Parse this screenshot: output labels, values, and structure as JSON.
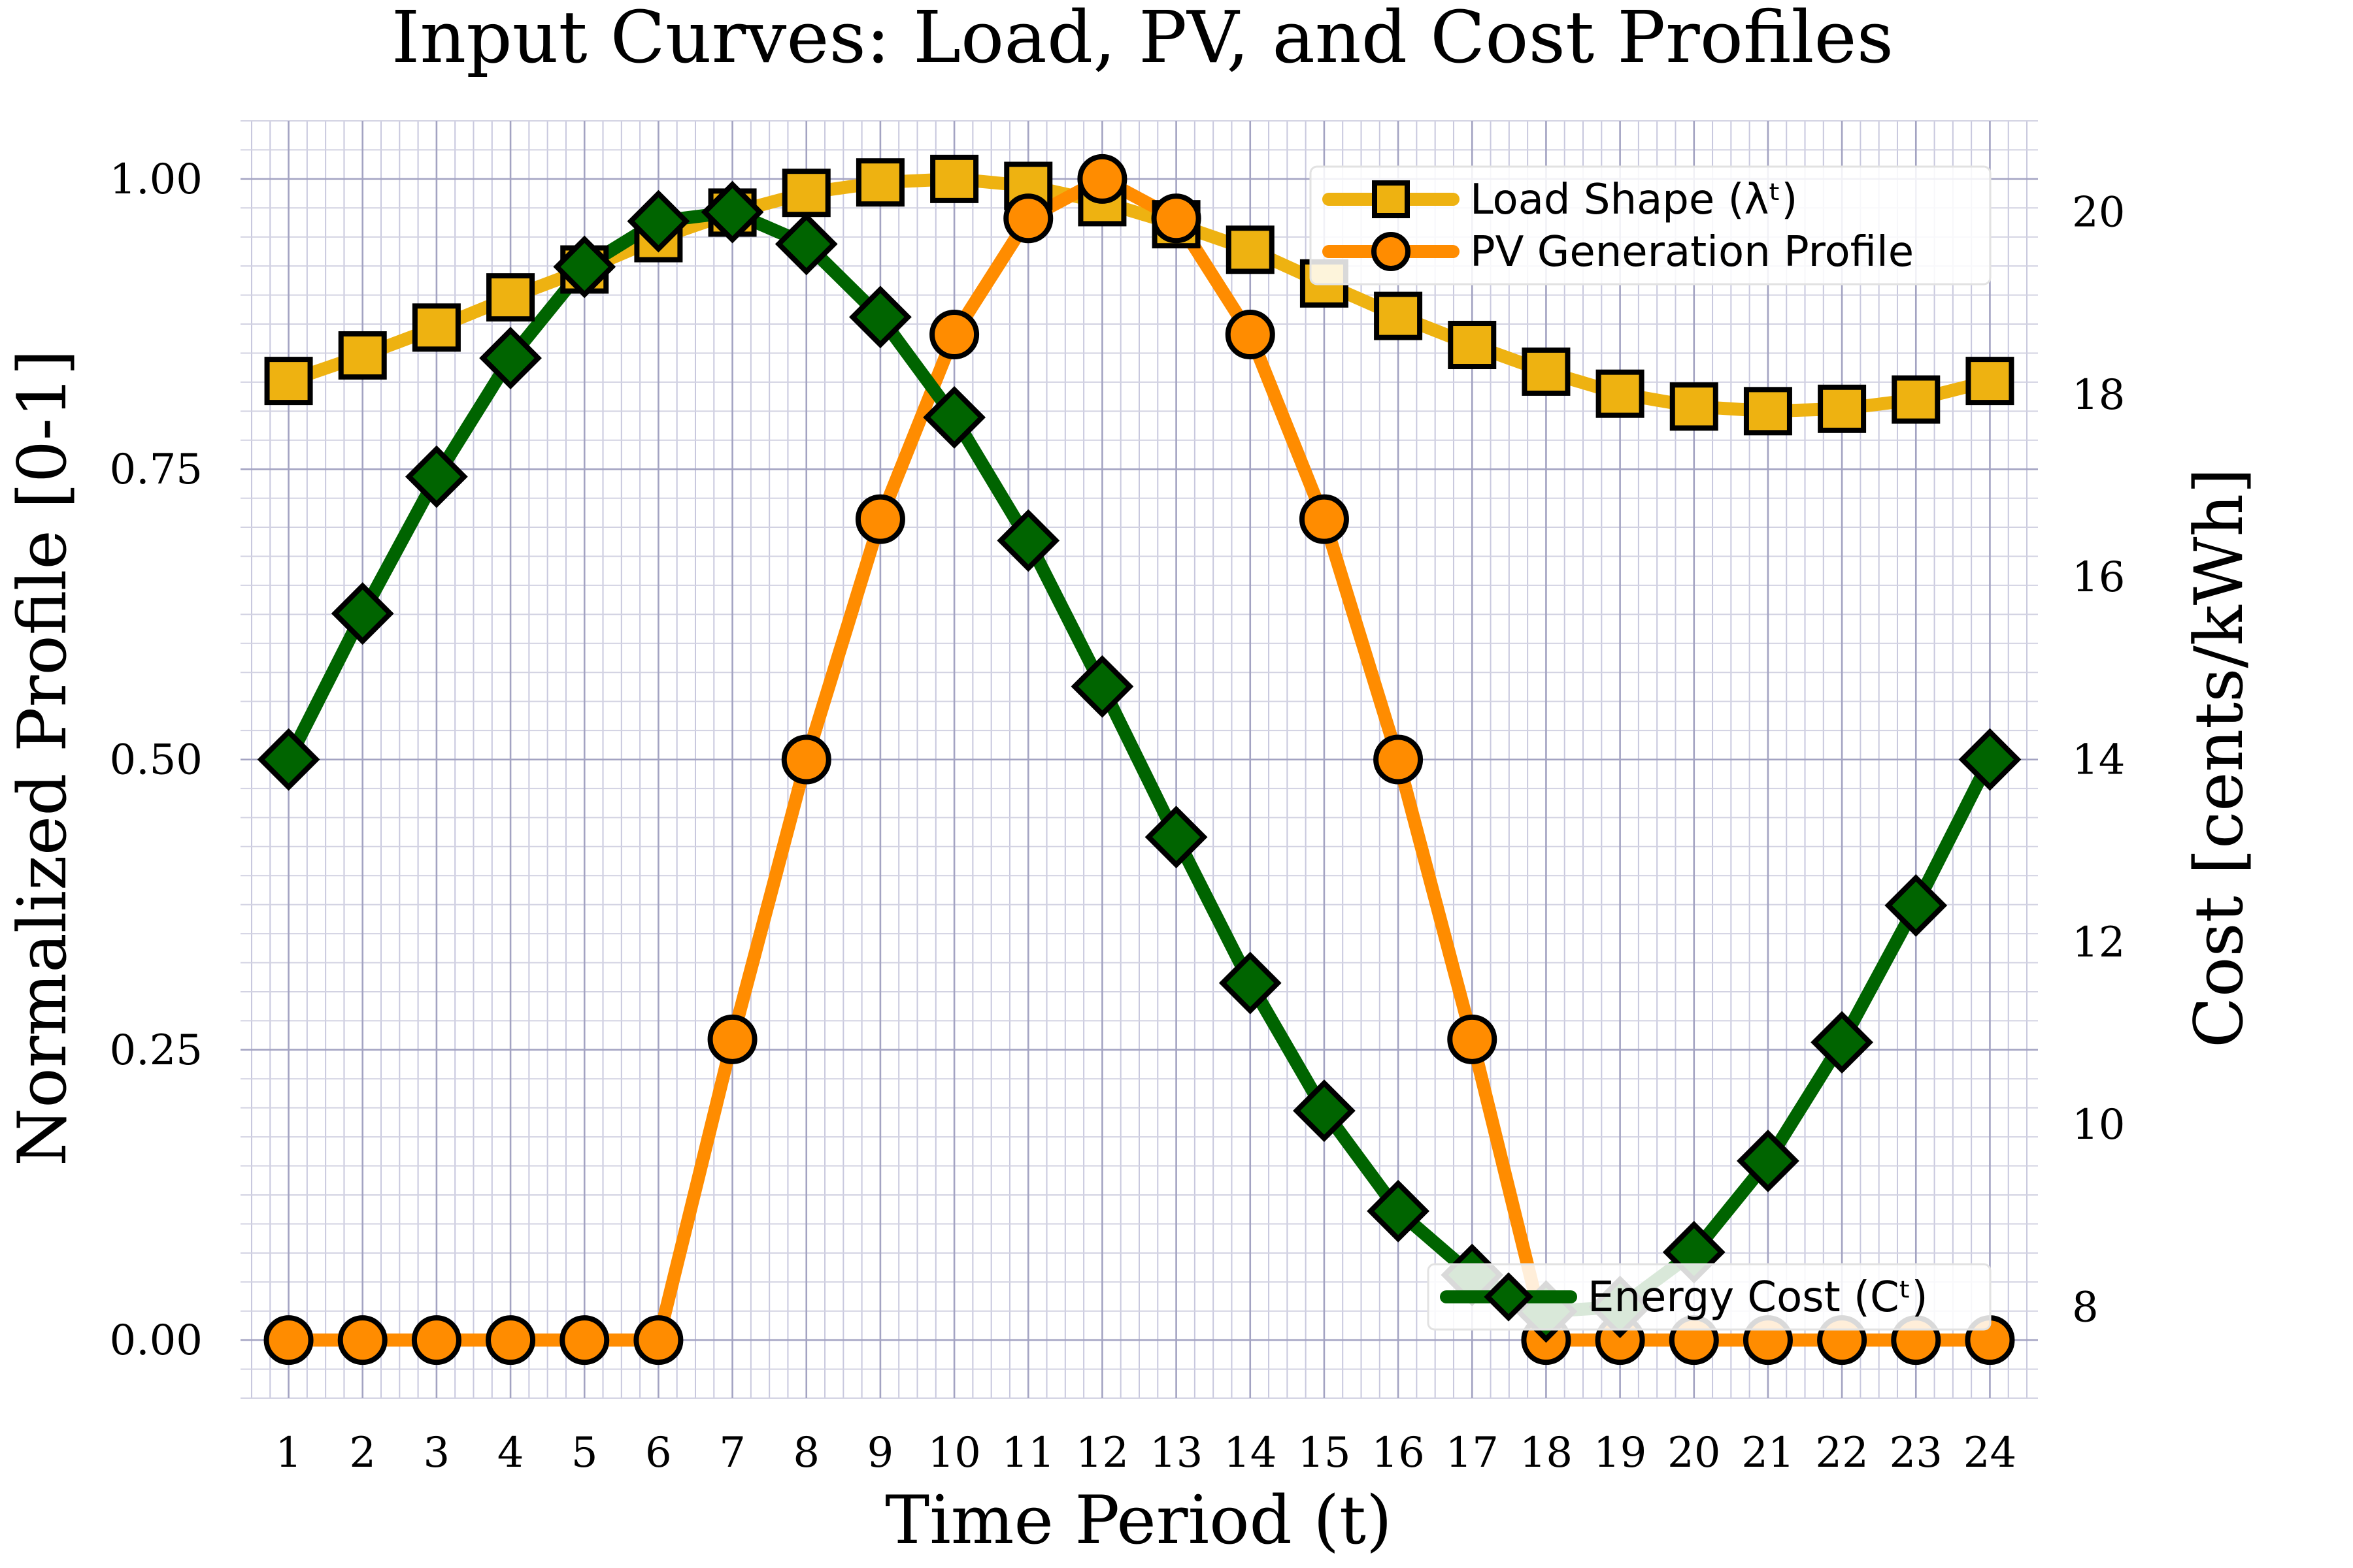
{
  "chart_data": {
    "type": "line",
    "title": "Input Curves: Load, PV, and Cost Profiles",
    "xlabel": "Time Period (t)",
    "ylabel": "Normalized Profile [0-1]",
    "y2label": "Cost [cents/kWh]",
    "categories": [
      "1",
      "2",
      "3",
      "4",
      "5",
      "6",
      "7",
      "8",
      "9",
      "10",
      "11",
      "12",
      "13",
      "14",
      "15",
      "16",
      "17",
      "18",
      "19",
      "20",
      "21",
      "22",
      "23",
      "24"
    ],
    "xlim": [
      0.35,
      24.65
    ],
    "ylim": [
      -0.05,
      1.05
    ],
    "y2lim": [
      7.0,
      21.0
    ],
    "yticks": [
      "0.00",
      "0.25",
      "0.50",
      "0.75",
      "1.00"
    ],
    "y2ticks": [
      "8",
      "10",
      "12",
      "14",
      "16",
      "18",
      "20"
    ],
    "grid": true,
    "series": [
      {
        "name": "Load Shape (λᵗ)",
        "axis": "left",
        "color": "#eeb211",
        "marker": "square",
        "values": [
          0.826,
          0.848,
          0.872,
          0.898,
          0.922,
          0.949,
          0.971,
          0.988,
          0.997,
          1.0,
          0.994,
          0.98,
          0.961,
          0.939,
          0.91,
          0.882,
          0.857,
          0.834,
          0.815,
          0.804,
          0.8,
          0.802,
          0.81,
          0.826
        ]
      },
      {
        "name": "PV Generation Profile",
        "axis": "left",
        "color": "#ff8c00",
        "marker": "circle",
        "values": [
          0,
          0,
          0,
          0,
          0,
          0,
          0.259,
          0.5,
          0.707,
          0.866,
          0.966,
          1.0,
          0.966,
          0.866,
          0.707,
          0.5,
          0.259,
          0,
          0,
          0,
          0,
          0,
          0,
          0
        ]
      },
      {
        "name": "Energy Cost (Cᵗ)",
        "axis": "right",
        "color": "#006400",
        "marker": "diamond",
        "values": [
          14.0,
          15.6,
          17.1,
          18.4,
          19.4,
          19.9,
          20.0,
          19.65,
          18.85,
          17.75,
          16.4,
          14.8,
          13.15,
          11.55,
          10.15,
          9.05,
          8.35,
          7.95,
          8.0,
          8.6,
          9.6,
          10.9,
          12.4,
          14.0
        ]
      }
    ],
    "legends": [
      {
        "placement": "top-right",
        "entries": [
          0,
          1
        ]
      },
      {
        "placement": "bottom-right",
        "entries": [
          2
        ]
      }
    ]
  }
}
